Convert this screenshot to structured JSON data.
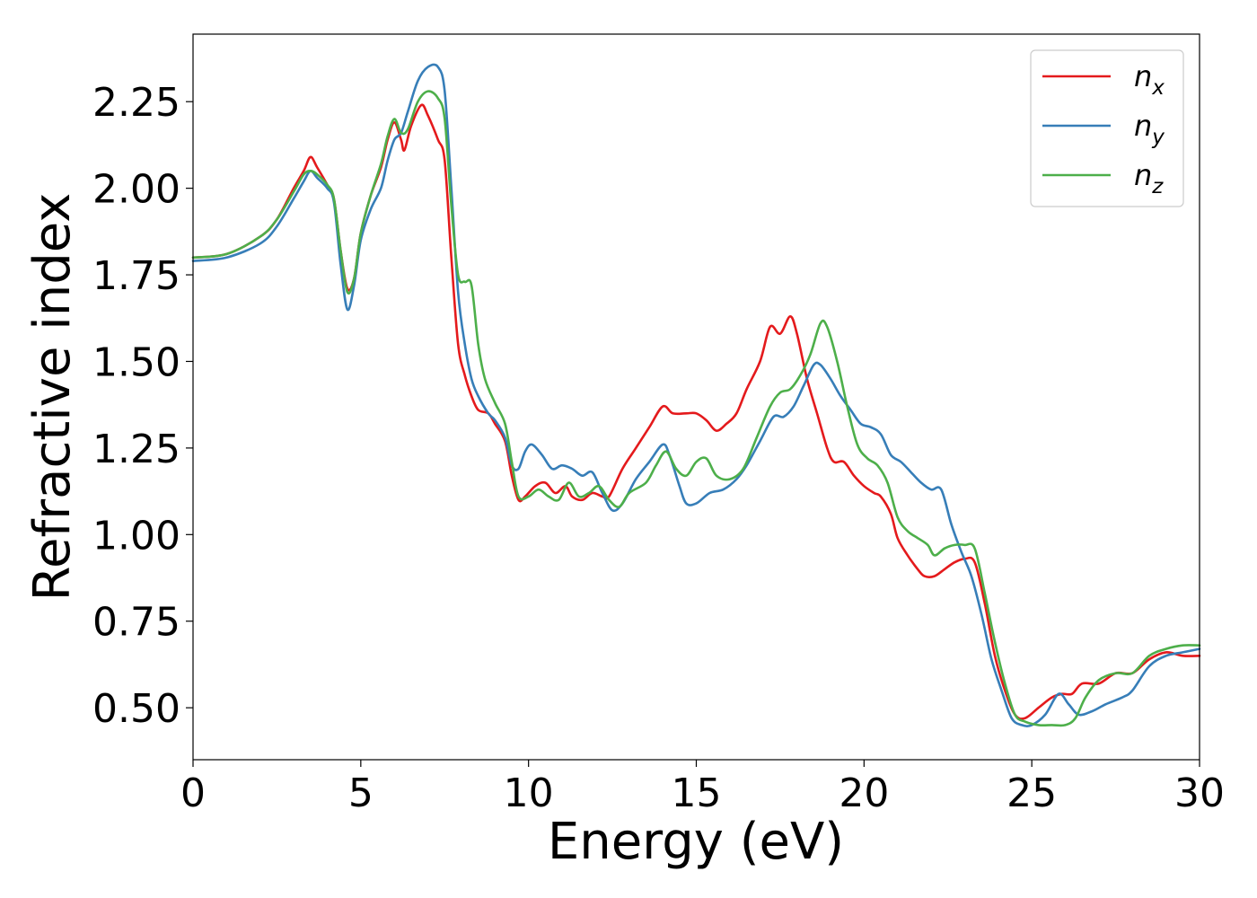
{
  "chart_data": {
    "type": "line",
    "title": "",
    "xlabel": "Energy (eV)",
    "ylabel": "Refractive index",
    "xlim": [
      0,
      30
    ],
    "ylim": [
      0.35,
      2.445
    ],
    "xticks": [
      0,
      5,
      10,
      15,
      20,
      25,
      30
    ],
    "xtick_labels": [
      "0",
      "5",
      "10",
      "15",
      "20",
      "25",
      "30"
    ],
    "yticks": [
      0.5,
      0.75,
      1.0,
      1.25,
      1.5,
      1.75,
      2.0,
      2.25
    ],
    "ytick_labels": [
      "0.50",
      "0.75",
      "1.00",
      "1.25",
      "1.50",
      "1.75",
      "2.00",
      "2.25"
    ],
    "grid": false,
    "legend_position": "top-right",
    "series": [
      {
        "name": "n_x",
        "label_base": "n",
        "label_sub": "x",
        "color": "#e41a1c",
        "points": [
          [
            0,
            1.8
          ],
          [
            1,
            1.81
          ],
          [
            2,
            1.86
          ],
          [
            2.5,
            1.91
          ],
          [
            3,
            2.0
          ],
          [
            3.3,
            2.05
          ],
          [
            3.5,
            2.09
          ],
          [
            3.7,
            2.06
          ],
          [
            4.0,
            2.01
          ],
          [
            4.2,
            1.97
          ],
          [
            4.4,
            1.82
          ],
          [
            4.6,
            1.71
          ],
          [
            4.8,
            1.74
          ],
          [
            5.0,
            1.87
          ],
          [
            5.3,
            1.98
          ],
          [
            5.6,
            2.06
          ],
          [
            5.8,
            2.14
          ],
          [
            6.0,
            2.19
          ],
          [
            6.2,
            2.14
          ],
          [
            6.3,
            2.11
          ],
          [
            6.5,
            2.18
          ],
          [
            6.8,
            2.24
          ],
          [
            7.0,
            2.21
          ],
          [
            7.3,
            2.14
          ],
          [
            7.5,
            2.08
          ],
          [
            7.7,
            1.8
          ],
          [
            7.9,
            1.55
          ],
          [
            8.1,
            1.46
          ],
          [
            8.3,
            1.4
          ],
          [
            8.5,
            1.36
          ],
          [
            8.8,
            1.35
          ],
          [
            9.0,
            1.32
          ],
          [
            9.3,
            1.27
          ],
          [
            9.5,
            1.17
          ],
          [
            9.7,
            1.1
          ],
          [
            9.9,
            1.11
          ],
          [
            10.2,
            1.14
          ],
          [
            10.5,
            1.15
          ],
          [
            10.8,
            1.12
          ],
          [
            11.1,
            1.14
          ],
          [
            11.3,
            1.11
          ],
          [
            11.6,
            1.1
          ],
          [
            11.9,
            1.12
          ],
          [
            12.2,
            1.11
          ],
          [
            12.4,
            1.11
          ],
          [
            12.8,
            1.19
          ],
          [
            13.2,
            1.25
          ],
          [
            13.6,
            1.31
          ],
          [
            14.0,
            1.37
          ],
          [
            14.3,
            1.35
          ],
          [
            14.7,
            1.35
          ],
          [
            15.0,
            1.35
          ],
          [
            15.3,
            1.33
          ],
          [
            15.6,
            1.3
          ],
          [
            15.9,
            1.32
          ],
          [
            16.2,
            1.35
          ],
          [
            16.5,
            1.42
          ],
          [
            16.9,
            1.5
          ],
          [
            17.2,
            1.6
          ],
          [
            17.5,
            1.58
          ],
          [
            17.8,
            1.63
          ],
          [
            18.0,
            1.58
          ],
          [
            18.3,
            1.45
          ],
          [
            18.6,
            1.35
          ],
          [
            18.9,
            1.25
          ],
          [
            19.1,
            1.21
          ],
          [
            19.4,
            1.21
          ],
          [
            19.7,
            1.17
          ],
          [
            20.0,
            1.14
          ],
          [
            20.3,
            1.12
          ],
          [
            20.5,
            1.11
          ],
          [
            20.8,
            1.06
          ],
          [
            21.0,
            0.99
          ],
          [
            21.3,
            0.94
          ],
          [
            21.6,
            0.9
          ],
          [
            21.8,
            0.88
          ],
          [
            22.1,
            0.88
          ],
          [
            22.4,
            0.9
          ],
          [
            22.7,
            0.92
          ],
          [
            23.0,
            0.93
          ],
          [
            23.3,
            0.92
          ],
          [
            23.6,
            0.8
          ],
          [
            23.9,
            0.65
          ],
          [
            24.2,
            0.55
          ],
          [
            24.5,
            0.48
          ],
          [
            24.8,
            0.47
          ],
          [
            25.2,
            0.5
          ],
          [
            25.6,
            0.53
          ],
          [
            25.9,
            0.54
          ],
          [
            26.2,
            0.54
          ],
          [
            26.5,
            0.57
          ],
          [
            27.0,
            0.57
          ],
          [
            27.5,
            0.6
          ],
          [
            28.0,
            0.6
          ],
          [
            28.5,
            0.64
          ],
          [
            29.0,
            0.66
          ],
          [
            29.5,
            0.65
          ],
          [
            30.0,
            0.65
          ]
        ]
      },
      {
        "name": "n_y",
        "label_base": "n",
        "label_sub": "y",
        "color": "#377eb8",
        "points": [
          [
            0,
            1.79
          ],
          [
            1,
            1.8
          ],
          [
            2,
            1.84
          ],
          [
            2.5,
            1.89
          ],
          [
            3,
            1.97
          ],
          [
            3.3,
            2.02
          ],
          [
            3.5,
            2.05
          ],
          [
            3.7,
            2.03
          ],
          [
            4.0,
            2.0
          ],
          [
            4.2,
            1.96
          ],
          [
            4.4,
            1.78
          ],
          [
            4.6,
            1.65
          ],
          [
            4.8,
            1.72
          ],
          [
            5.0,
            1.85
          ],
          [
            5.3,
            1.94
          ],
          [
            5.6,
            2.0
          ],
          [
            5.8,
            2.08
          ],
          [
            6.0,
            2.14
          ],
          [
            6.2,
            2.16
          ],
          [
            6.4,
            2.22
          ],
          [
            6.7,
            2.31
          ],
          [
            7.0,
            2.35
          ],
          [
            7.3,
            2.35
          ],
          [
            7.5,
            2.28
          ],
          [
            7.7,
            2.0
          ],
          [
            7.9,
            1.7
          ],
          [
            8.1,
            1.55
          ],
          [
            8.3,
            1.45
          ],
          [
            8.5,
            1.4
          ],
          [
            8.8,
            1.35
          ],
          [
            9.0,
            1.33
          ],
          [
            9.3,
            1.28
          ],
          [
            9.5,
            1.2
          ],
          [
            9.7,
            1.19
          ],
          [
            9.9,
            1.24
          ],
          [
            10.1,
            1.26
          ],
          [
            10.4,
            1.23
          ],
          [
            10.7,
            1.19
          ],
          [
            11.0,
            1.2
          ],
          [
            11.3,
            1.19
          ],
          [
            11.6,
            1.17
          ],
          [
            11.9,
            1.18
          ],
          [
            12.2,
            1.12
          ],
          [
            12.5,
            1.07
          ],
          [
            12.8,
            1.09
          ],
          [
            13.2,
            1.16
          ],
          [
            13.6,
            1.21
          ],
          [
            14.0,
            1.26
          ],
          [
            14.2,
            1.23
          ],
          [
            14.5,
            1.14
          ],
          [
            14.7,
            1.09
          ],
          [
            15.0,
            1.09
          ],
          [
            15.4,
            1.12
          ],
          [
            15.8,
            1.13
          ],
          [
            16.2,
            1.16
          ],
          [
            16.5,
            1.2
          ],
          [
            16.9,
            1.27
          ],
          [
            17.3,
            1.34
          ],
          [
            17.6,
            1.34
          ],
          [
            17.9,
            1.37
          ],
          [
            18.2,
            1.43
          ],
          [
            18.5,
            1.49
          ],
          [
            18.7,
            1.49
          ],
          [
            19.0,
            1.45
          ],
          [
            19.3,
            1.4
          ],
          [
            19.6,
            1.36
          ],
          [
            19.9,
            1.32
          ],
          [
            20.2,
            1.31
          ],
          [
            20.5,
            1.29
          ],
          [
            20.8,
            1.23
          ],
          [
            21.1,
            1.21
          ],
          [
            21.4,
            1.18
          ],
          [
            21.7,
            1.15
          ],
          [
            22.0,
            1.13
          ],
          [
            22.3,
            1.13
          ],
          [
            22.6,
            1.03
          ],
          [
            22.9,
            0.95
          ],
          [
            23.2,
            0.88
          ],
          [
            23.5,
            0.77
          ],
          [
            23.8,
            0.64
          ],
          [
            24.1,
            0.55
          ],
          [
            24.4,
            0.47
          ],
          [
            24.7,
            0.45
          ],
          [
            25.0,
            0.45
          ],
          [
            25.4,
            0.48
          ],
          [
            25.8,
            0.54
          ],
          [
            26.1,
            0.51
          ],
          [
            26.4,
            0.48
          ],
          [
            26.8,
            0.49
          ],
          [
            27.2,
            0.51
          ],
          [
            27.7,
            0.53
          ],
          [
            28.0,
            0.55
          ],
          [
            28.5,
            0.62
          ],
          [
            29.0,
            0.65
          ],
          [
            29.5,
            0.66
          ],
          [
            30.0,
            0.67
          ]
        ]
      },
      {
        "name": "n_z",
        "label_base": "n",
        "label_sub": "z",
        "color": "#4daf4a",
        "points": [
          [
            0,
            1.8
          ],
          [
            1,
            1.81
          ],
          [
            2,
            1.86
          ],
          [
            2.5,
            1.91
          ],
          [
            3,
            1.99
          ],
          [
            3.3,
            2.04
          ],
          [
            3.5,
            2.05
          ],
          [
            3.7,
            2.04
          ],
          [
            4.0,
            2.01
          ],
          [
            4.2,
            1.97
          ],
          [
            4.4,
            1.82
          ],
          [
            4.6,
            1.7
          ],
          [
            4.8,
            1.74
          ],
          [
            5.0,
            1.87
          ],
          [
            5.3,
            1.98
          ],
          [
            5.6,
            2.07
          ],
          [
            5.8,
            2.15
          ],
          [
            6.0,
            2.2
          ],
          [
            6.2,
            2.16
          ],
          [
            6.4,
            2.17
          ],
          [
            6.7,
            2.25
          ],
          [
            7.0,
            2.28
          ],
          [
            7.3,
            2.26
          ],
          [
            7.5,
            2.2
          ],
          [
            7.7,
            1.95
          ],
          [
            7.9,
            1.75
          ],
          [
            8.1,
            1.73
          ],
          [
            8.3,
            1.72
          ],
          [
            8.5,
            1.55
          ],
          [
            8.7,
            1.45
          ],
          [
            9.0,
            1.38
          ],
          [
            9.3,
            1.32
          ],
          [
            9.5,
            1.21
          ],
          [
            9.7,
            1.11
          ],
          [
            10.0,
            1.11
          ],
          [
            10.3,
            1.13
          ],
          [
            10.6,
            1.11
          ],
          [
            10.9,
            1.1
          ],
          [
            11.2,
            1.15
          ],
          [
            11.5,
            1.11
          ],
          [
            11.8,
            1.12
          ],
          [
            12.1,
            1.14
          ],
          [
            12.4,
            1.1
          ],
          [
            12.7,
            1.08
          ],
          [
            13.0,
            1.12
          ],
          [
            13.5,
            1.15
          ],
          [
            13.8,
            1.2
          ],
          [
            14.1,
            1.24
          ],
          [
            14.4,
            1.19
          ],
          [
            14.7,
            1.17
          ],
          [
            15.0,
            1.21
          ],
          [
            15.3,
            1.22
          ],
          [
            15.6,
            1.17
          ],
          [
            16.0,
            1.16
          ],
          [
            16.4,
            1.19
          ],
          [
            16.8,
            1.28
          ],
          [
            17.2,
            1.37
          ],
          [
            17.5,
            1.41
          ],
          [
            17.8,
            1.42
          ],
          [
            18.1,
            1.46
          ],
          [
            18.4,
            1.52
          ],
          [
            18.7,
            1.61
          ],
          [
            18.9,
            1.6
          ],
          [
            19.2,
            1.5
          ],
          [
            19.5,
            1.37
          ],
          [
            19.8,
            1.26
          ],
          [
            20.1,
            1.22
          ],
          [
            20.4,
            1.2
          ],
          [
            20.7,
            1.15
          ],
          [
            21.0,
            1.05
          ],
          [
            21.3,
            1.01
          ],
          [
            21.6,
            0.99
          ],
          [
            21.9,
            0.97
          ],
          [
            22.1,
            0.94
          ],
          [
            22.4,
            0.96
          ],
          [
            22.7,
            0.97
          ],
          [
            23.0,
            0.97
          ],
          [
            23.3,
            0.96
          ],
          [
            23.6,
            0.83
          ],
          [
            23.9,
            0.69
          ],
          [
            24.2,
            0.57
          ],
          [
            24.5,
            0.48
          ],
          [
            24.8,
            0.46
          ],
          [
            25.2,
            0.45
          ],
          [
            25.6,
            0.45
          ],
          [
            26.0,
            0.45
          ],
          [
            26.3,
            0.47
          ],
          [
            26.6,
            0.53
          ],
          [
            27.0,
            0.58
          ],
          [
            27.5,
            0.6
          ],
          [
            28.0,
            0.6
          ],
          [
            28.5,
            0.65
          ],
          [
            29.0,
            0.67
          ],
          [
            29.5,
            0.68
          ],
          [
            30.0,
            0.68
          ]
        ]
      }
    ]
  }
}
